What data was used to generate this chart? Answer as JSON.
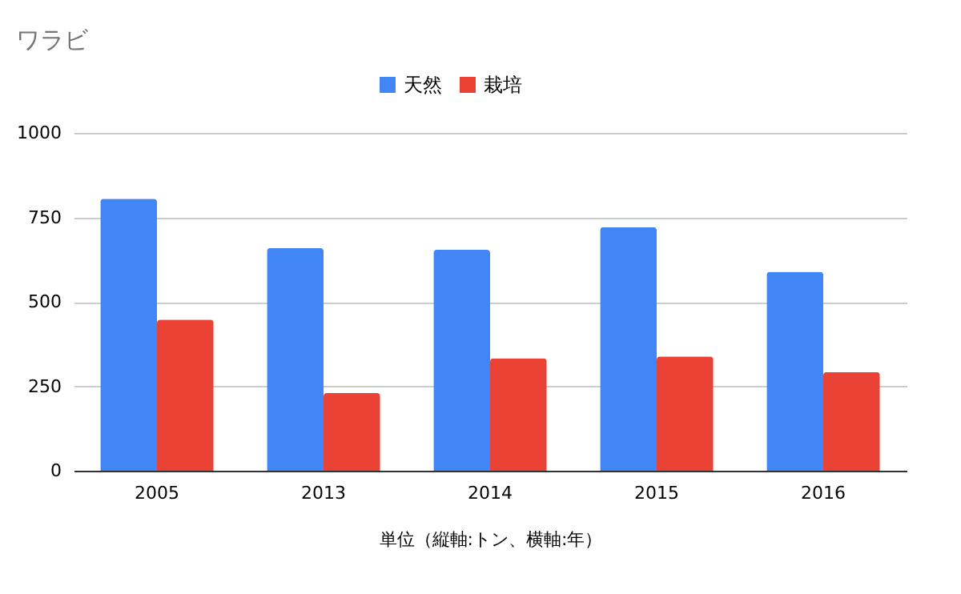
{
  "chart_data": {
    "type": "bar",
    "title": "ワラビ",
    "xlabel": "単位（縦軸:トン、横軸:年）",
    "categories": [
      "2005",
      "2013",
      "2014",
      "2015",
      "2016"
    ],
    "series": [
      {
        "name": "天然",
        "color": "#4285f4",
        "values": [
          805,
          659,
          654,
          721,
          589
        ]
      },
      {
        "name": "栽培",
        "color": "#ea4335",
        "values": [
          447,
          230,
          333,
          338,
          292
        ]
      }
    ],
    "ylim": [
      0,
      1000
    ],
    "yticks": [
      0,
      250,
      500,
      750,
      1000
    ],
    "grid": "y",
    "legend": "top"
  }
}
